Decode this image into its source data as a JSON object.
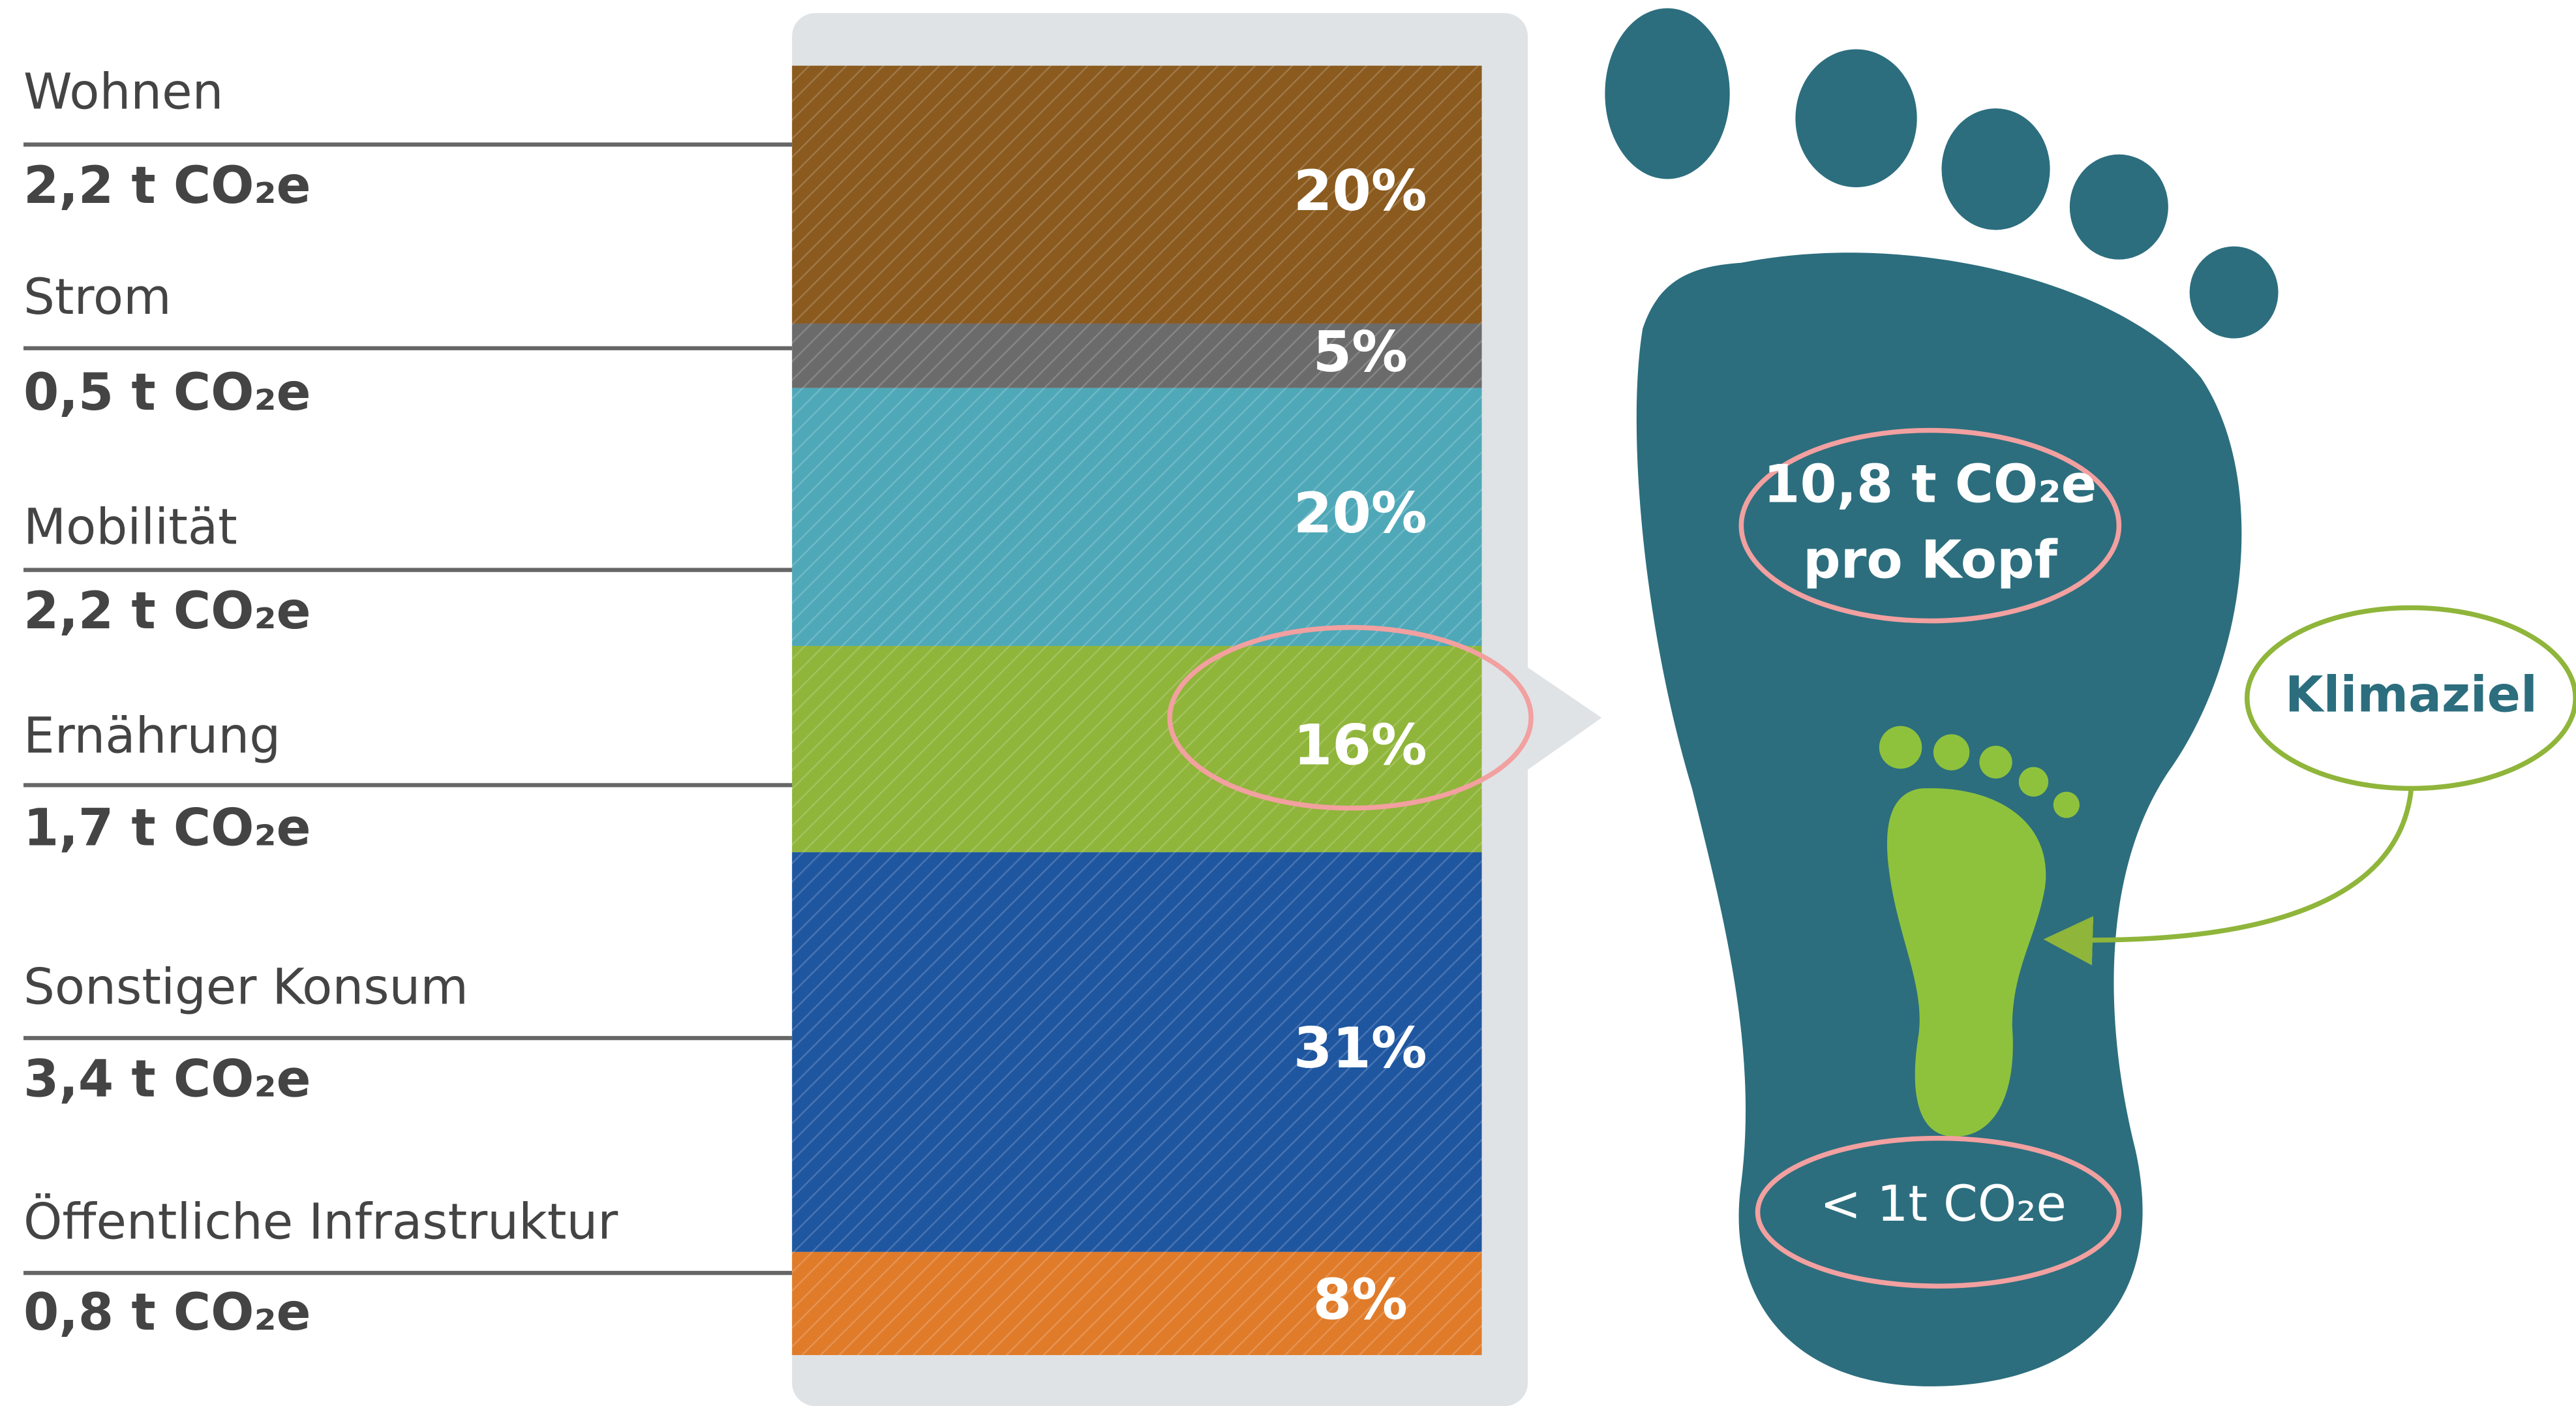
{
  "segments": [
    {
      "label": "Wohnen",
      "amount": "2,2 t CO₂e",
      "share": 20,
      "share_label": "20%",
      "color": "#8a5a1e"
    },
    {
      "label": "Strom",
      "amount": "0,5 t CO₂e",
      "share": 5,
      "share_label": "5%",
      "color": "#6b6b6b"
    },
    {
      "label": "Mobilität",
      "amount": "2,2 t CO₂e",
      "share": 20,
      "share_label": "20%",
      "color": "#4fa8b8"
    },
    {
      "label": "Ernährung",
      "amount": "1,7 t CO₂e",
      "share": 16,
      "share_label": "16%",
      "color": "#8fb53a"
    },
    {
      "label": "Sonstiger Konsum",
      "amount": "3,4 t CO₂e",
      "share": 31,
      "share_label": "31%",
      "color": "#1f56a0"
    },
    {
      "label": "Öffentliche Infrastruktur",
      "amount": "0,8 t CO₂e",
      "share": 8,
      "share_label": "8%",
      "color": "#e07b2a"
    }
  ],
  "footprint": {
    "total": "10,8 t CO₂e",
    "total_unit": "pro Kopf",
    "goal_label": "Klimaziel",
    "goal": "< 1t CO₂e"
  }
}
